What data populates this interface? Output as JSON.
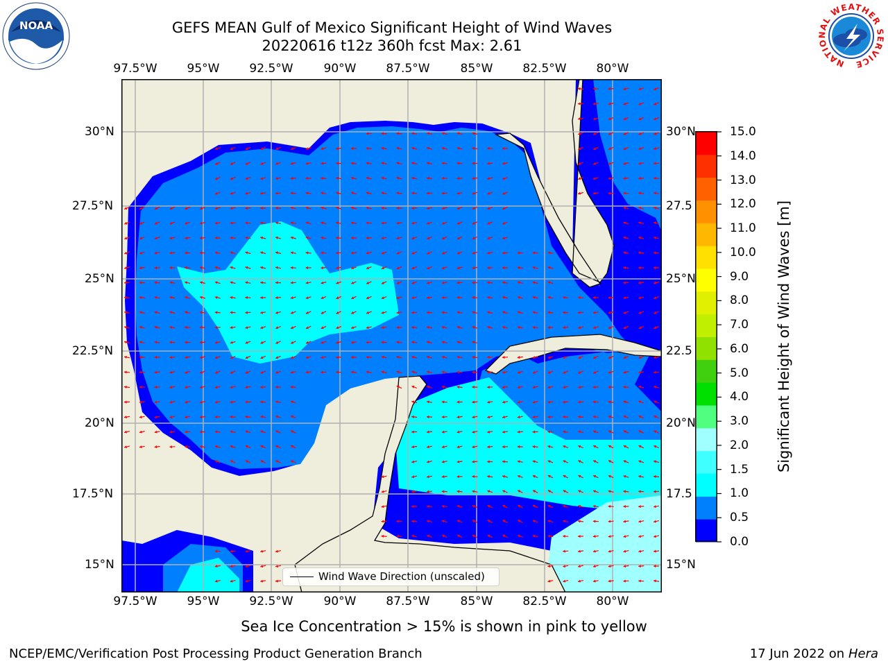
{
  "title": {
    "line1": "GEFS MEAN Gulf of Mexico Significant Height of Wind Waves",
    "line2": "20220616 t12z 360h fcst   Max: 2.61"
  },
  "map": {
    "lon_labels": [
      "97.5°W",
      "95°W",
      "92.5°W",
      "90°W",
      "87.5°W",
      "85°W",
      "82.5°W",
      "80°W"
    ],
    "lat_labels": [
      "30°N",
      "27.5°N",
      "25°N",
      "22.5°N",
      "20°N",
      "17.5°N",
      "15°N"
    ],
    "lat_labels_right": [
      "30°N",
      "27.5",
      "25°N",
      "22.5",
      "20°N",
      "17.5",
      "15°N"
    ],
    "colors": {
      "land": "#efeddc",
      "coast": "#000000",
      "grid": "#b0b0b0",
      "arrow": "#ff0000"
    }
  },
  "colorbar": {
    "title": "Significant Height of Wind Waves [m]",
    "ticks": [
      "15.0",
      "14.0",
      "13.0",
      "12.0",
      "11.0",
      "10.0",
      "9.0",
      "8.0",
      "7.0",
      "6.0",
      "5.0",
      "4.0",
      "3.0",
      "2.0",
      "1.5",
      "1.0",
      "0.5",
      "0.0"
    ],
    "colors": [
      "#0000ff",
      "#0080ff",
      "#00ffff",
      "#40ffff",
      "#a0ffff",
      "#50ff80",
      "#00e000",
      "#40d010",
      "#90e000",
      "#c0f000",
      "#e0f000",
      "#ffff00",
      "#ffe000",
      "#ffb800",
      "#ff9000",
      "#ff6000",
      "#ff3000",
      "#ff0000"
    ]
  },
  "legend": {
    "label": "Wind Wave Direction (unscaled)"
  },
  "footer": {
    "note": "Sea Ice Concentration > 15% is shown in pink to yellow",
    "left": "NCEP/EMC/Verification Post Processing Product Generation Branch",
    "right_date": "17 Jun 2022 on",
    "right_host": "Hera"
  },
  "logos": {
    "noara": "NOAA",
    "nws_ring": "NATIONAL WEATHER SERVICE"
  }
}
